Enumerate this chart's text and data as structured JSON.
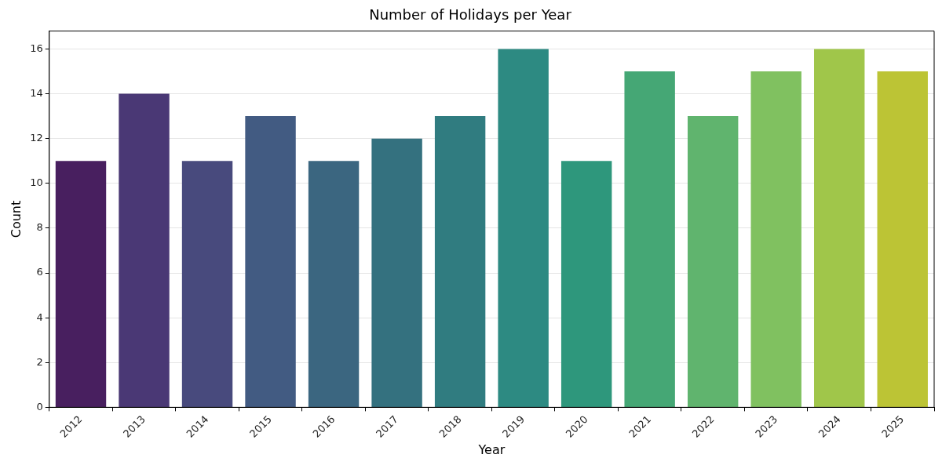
{
  "chart_data": {
    "type": "bar",
    "title": "Number of Holidays per Year",
    "xlabel": "Year",
    "ylabel": "Count",
    "categories": [
      "2012",
      "2013",
      "2014",
      "2015",
      "2016",
      "2017",
      "2018",
      "2019",
      "2020",
      "2021",
      "2022",
      "2023",
      "2024",
      "2025"
    ],
    "values": [
      11,
      14,
      11,
      13,
      11,
      12,
      13,
      16,
      11,
      15,
      13,
      15,
      16,
      15
    ],
    "colors": [
      "#481f5f",
      "#4a3875",
      "#484a7d",
      "#425b82",
      "#3b6680",
      "#34717f",
      "#307c80",
      "#2d8a82",
      "#2e977c",
      "#45a775",
      "#60b46e",
      "#80c160",
      "#a0c64a",
      "#bcc435"
    ],
    "ylim": [
      0,
      16.8
    ],
    "yticks": [
      0,
      2,
      4,
      6,
      8,
      10,
      12,
      14,
      16
    ],
    "grid": "y",
    "legend": false
  }
}
